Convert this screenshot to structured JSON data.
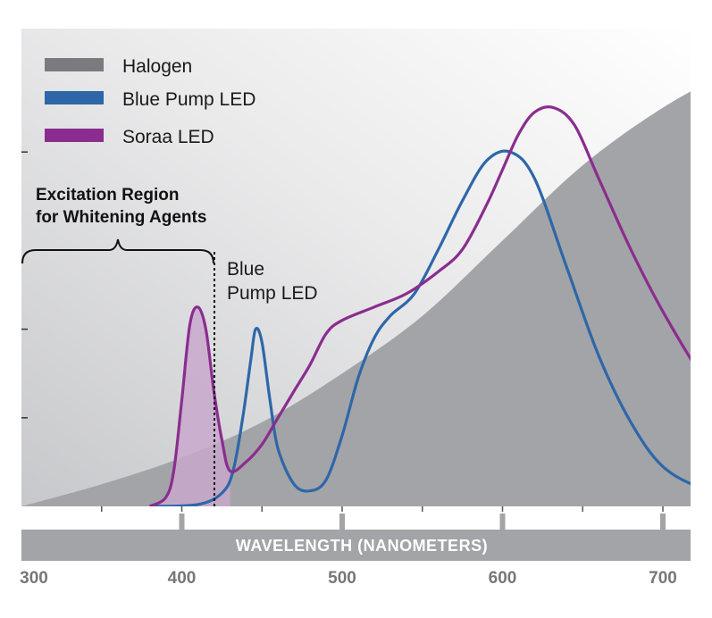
{
  "colors": {
    "halogen": "#a3a4a7",
    "halogen_legend": "#7a7b7e",
    "blue_pump": "#2d67a8",
    "soraa": "#8a2d8f",
    "soraa_fill": "#c9a8cc",
    "axis_band": "#a3a4a7",
    "tick_label": "#777777"
  },
  "chart_data": {
    "type": "line",
    "title": "",
    "xlabel": "WAVELENGTH (NANOMETERS)",
    "ylabel": "",
    "xlim": [
      300,
      750
    ],
    "ylim": [
      0,
      1
    ],
    "x_ticks": [
      300,
      400,
      500,
      600,
      700
    ],
    "tick_labels": [
      "300",
      "400",
      "500",
      "600",
      "700"
    ],
    "y_ticks": [
      0.2,
      0.4,
      0.8
    ],
    "legend": {
      "placement": "top-left",
      "entries": [
        "Halogen",
        "Blue Pump LED",
        "Soraa LED"
      ]
    },
    "annotations": {
      "excitation_region": {
        "line1": "Excitation Region",
        "line2": "for Whitening Agents",
        "x_range": [
          300,
          430
        ]
      },
      "blue_pump": {
        "line1": "Blue",
        "line2": "Pump LED",
        "x": 455
      }
    },
    "series": [
      {
        "name": "Halogen",
        "style": "area",
        "x": [
          300,
          350,
          400,
          450,
          500,
          550,
          600,
          650,
          700,
          750
        ],
        "y": [
          0.0,
          0.05,
          0.11,
          0.19,
          0.3,
          0.43,
          0.6,
          0.77,
          0.9,
          1.0
        ]
      },
      {
        "name": "Blue Pump LED",
        "style": "line",
        "x": [
          380,
          410,
          425,
          432,
          438,
          443,
          446,
          450,
          455,
          460,
          470,
          480,
          490,
          500,
          510,
          520,
          530,
          545,
          560,
          575,
          590,
          605,
          620,
          640,
          660,
          680,
          700,
          725,
          750
        ],
        "y": [
          0.0,
          0.004,
          0.03,
          0.08,
          0.2,
          0.33,
          0.4,
          0.37,
          0.24,
          0.13,
          0.05,
          0.035,
          0.06,
          0.16,
          0.29,
          0.38,
          0.43,
          0.48,
          0.58,
          0.69,
          0.78,
          0.8,
          0.74,
          0.54,
          0.34,
          0.19,
          0.09,
          0.04,
          0.02
        ]
      },
      {
        "name": "Soraa LED",
        "style": "line",
        "x": [
          380,
          390,
          395,
          400,
          405,
          410,
          415,
          420,
          425,
          430,
          440,
          450,
          460,
          470,
          480,
          490,
          500,
          520,
          540,
          560,
          575,
          590,
          600,
          610,
          620,
          632,
          645,
          660,
          680,
          700,
          725,
          750
        ],
        "y": [
          0.0,
          0.02,
          0.08,
          0.24,
          0.41,
          0.45,
          0.4,
          0.26,
          0.15,
          0.08,
          0.1,
          0.14,
          0.2,
          0.26,
          0.32,
          0.39,
          0.42,
          0.45,
          0.48,
          0.53,
          0.58,
          0.68,
          0.76,
          0.84,
          0.89,
          0.9,
          0.86,
          0.74,
          0.58,
          0.44,
          0.29,
          0.17
        ]
      }
    ]
  }
}
